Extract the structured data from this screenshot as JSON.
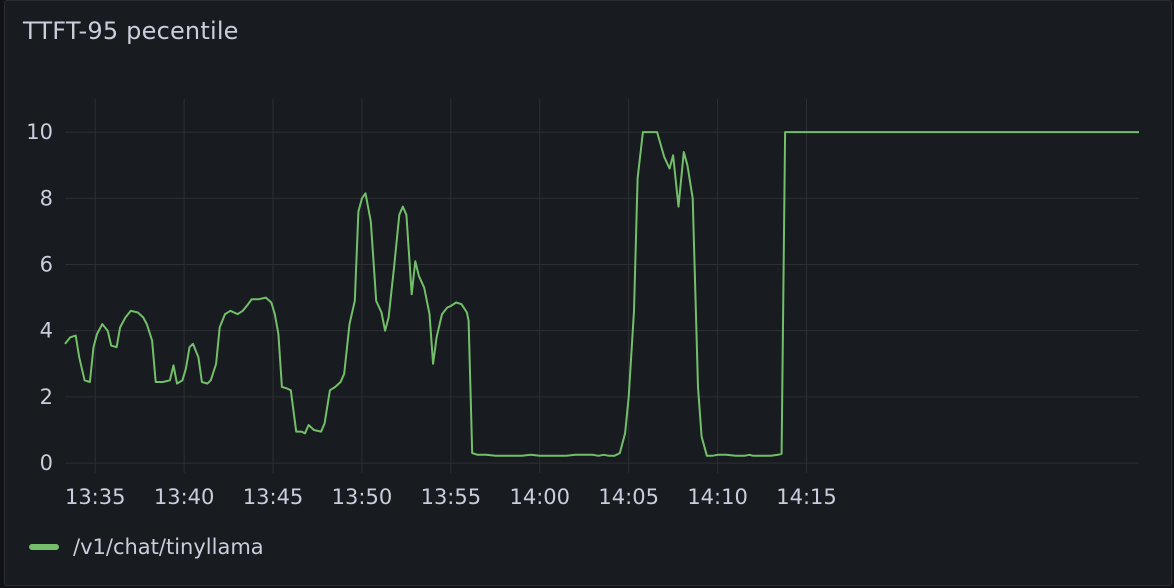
{
  "panel": {
    "title": "TTFT-95 pecentile"
  },
  "chart_data": {
    "type": "line",
    "title": "TTFT-95 pecentile",
    "xlabel": "",
    "ylabel": "",
    "ylim": [
      -0.3,
      11
    ],
    "yticks": [
      0,
      2,
      4,
      6,
      8,
      10
    ],
    "xlim": [
      13.3,
      73.7
    ],
    "xticks": [
      {
        "v": 15,
        "label": "13:35"
      },
      {
        "v": 20,
        "label": "13:40"
      },
      {
        "v": 25,
        "label": "13:45"
      },
      {
        "v": 30,
        "label": "13:50"
      },
      {
        "v": 35,
        "label": "13:55"
      },
      {
        "v": 40,
        "label": "14:00"
      },
      {
        "v": 45,
        "label": "14:05"
      },
      {
        "v": 50,
        "label": "14:10"
      },
      {
        "v": 55,
        "label": "14:15"
      }
    ],
    "grid": true,
    "legend_position": "bottom-left",
    "series": [
      {
        "name": "/v1/chat/tinyllama",
        "color": "#73bf69",
        "points": [
          [
            13.3,
            3.6
          ],
          [
            13.6,
            3.8
          ],
          [
            13.9,
            3.85
          ],
          [
            14.1,
            3.2
          ],
          [
            14.4,
            2.5
          ],
          [
            14.7,
            2.45
          ],
          [
            14.9,
            3.5
          ],
          [
            15.1,
            3.9
          ],
          [
            15.4,
            4.2
          ],
          [
            15.7,
            4.0
          ],
          [
            15.9,
            3.55
          ],
          [
            16.2,
            3.5
          ],
          [
            16.4,
            4.1
          ],
          [
            16.7,
            4.4
          ],
          [
            17.0,
            4.6
          ],
          [
            17.4,
            4.55
          ],
          [
            17.7,
            4.4
          ],
          [
            17.9,
            4.2
          ],
          [
            18.2,
            3.7
          ],
          [
            18.4,
            2.45
          ],
          [
            18.8,
            2.45
          ],
          [
            19.2,
            2.5
          ],
          [
            19.4,
            2.95
          ],
          [
            19.6,
            2.4
          ],
          [
            19.9,
            2.5
          ],
          [
            20.1,
            2.85
          ],
          [
            20.3,
            3.5
          ],
          [
            20.5,
            3.6
          ],
          [
            20.8,
            3.2
          ],
          [
            21.0,
            2.45
          ],
          [
            21.3,
            2.4
          ],
          [
            21.5,
            2.5
          ],
          [
            21.8,
            3.0
          ],
          [
            22.0,
            4.1
          ],
          [
            22.3,
            4.5
          ],
          [
            22.6,
            4.6
          ],
          [
            23.0,
            4.5
          ],
          [
            23.3,
            4.6
          ],
          [
            23.6,
            4.8
          ],
          [
            23.8,
            4.95
          ],
          [
            24.2,
            4.95
          ],
          [
            24.6,
            5.0
          ],
          [
            24.9,
            4.85
          ],
          [
            25.1,
            4.5
          ],
          [
            25.3,
            3.9
          ],
          [
            25.5,
            2.3
          ],
          [
            25.8,
            2.25
          ],
          [
            26.0,
            2.2
          ],
          [
            26.3,
            0.95
          ],
          [
            26.6,
            0.95
          ],
          [
            26.8,
            0.9
          ],
          [
            27.0,
            1.15
          ],
          [
            27.3,
            1.0
          ],
          [
            27.7,
            0.95
          ],
          [
            27.9,
            1.2
          ],
          [
            28.2,
            2.2
          ],
          [
            28.5,
            2.3
          ],
          [
            28.8,
            2.45
          ],
          [
            29.0,
            2.7
          ],
          [
            29.3,
            4.2
          ],
          [
            29.6,
            4.9
          ],
          [
            29.8,
            7.6
          ],
          [
            30.0,
            8.0
          ],
          [
            30.2,
            8.15
          ],
          [
            30.5,
            7.3
          ],
          [
            30.8,
            4.9
          ],
          [
            31.1,
            4.55
          ],
          [
            31.3,
            4.0
          ],
          [
            31.5,
            4.4
          ],
          [
            31.8,
            5.9
          ],
          [
            32.1,
            7.5
          ],
          [
            32.3,
            7.75
          ],
          [
            32.5,
            7.5
          ],
          [
            32.8,
            5.1
          ],
          [
            33.0,
            6.1
          ],
          [
            33.2,
            5.65
          ],
          [
            33.5,
            5.3
          ],
          [
            33.8,
            4.5
          ],
          [
            34.0,
            3.0
          ],
          [
            34.2,
            3.8
          ],
          [
            34.5,
            4.5
          ],
          [
            34.8,
            4.7
          ],
          [
            35.0,
            4.75
          ],
          [
            35.3,
            4.85
          ],
          [
            35.6,
            4.8
          ],
          [
            35.9,
            4.55
          ],
          [
            36.0,
            4.3
          ],
          [
            36.2,
            0.3
          ],
          [
            36.5,
            0.25
          ],
          [
            37.0,
            0.25
          ],
          [
            37.5,
            0.22
          ],
          [
            38.0,
            0.22
          ],
          [
            38.5,
            0.22
          ],
          [
            39.0,
            0.22
          ],
          [
            39.5,
            0.25
          ],
          [
            40.0,
            0.22
          ],
          [
            40.5,
            0.22
          ],
          [
            41.0,
            0.22
          ],
          [
            41.5,
            0.22
          ],
          [
            42.0,
            0.25
          ],
          [
            42.5,
            0.25
          ],
          [
            43.0,
            0.25
          ],
          [
            43.3,
            0.22
          ],
          [
            43.6,
            0.25
          ],
          [
            43.9,
            0.22
          ],
          [
            44.2,
            0.22
          ],
          [
            44.5,
            0.3
          ],
          [
            44.8,
            0.9
          ],
          [
            45.0,
            2.0
          ],
          [
            45.3,
            4.6
          ],
          [
            45.5,
            8.6
          ],
          [
            45.8,
            10.0
          ],
          [
            46.2,
            10.0
          ],
          [
            46.6,
            10.0
          ],
          [
            47.0,
            9.25
          ],
          [
            47.3,
            8.9
          ],
          [
            47.5,
            9.3
          ],
          [
            47.8,
            7.75
          ],
          [
            48.1,
            9.4
          ],
          [
            48.3,
            9.0
          ],
          [
            48.6,
            8.0
          ],
          [
            48.9,
            2.3
          ],
          [
            49.1,
            0.8
          ],
          [
            49.4,
            0.22
          ],
          [
            49.7,
            0.22
          ],
          [
            50.0,
            0.25
          ],
          [
            50.5,
            0.25
          ],
          [
            51.0,
            0.22
          ],
          [
            51.5,
            0.22
          ],
          [
            51.8,
            0.25
          ],
          [
            52.0,
            0.22
          ],
          [
            52.5,
            0.22
          ],
          [
            53.0,
            0.22
          ],
          [
            53.4,
            0.25
          ],
          [
            53.6,
            0.28
          ],
          [
            53.8,
            10.0
          ],
          [
            56.0,
            10.0
          ],
          [
            58.0,
            10.0
          ],
          [
            60.0,
            10.0
          ],
          [
            65.0,
            10.0
          ],
          [
            70.0,
            10.0
          ],
          [
            73.7,
            10.0
          ]
        ]
      }
    ]
  }
}
